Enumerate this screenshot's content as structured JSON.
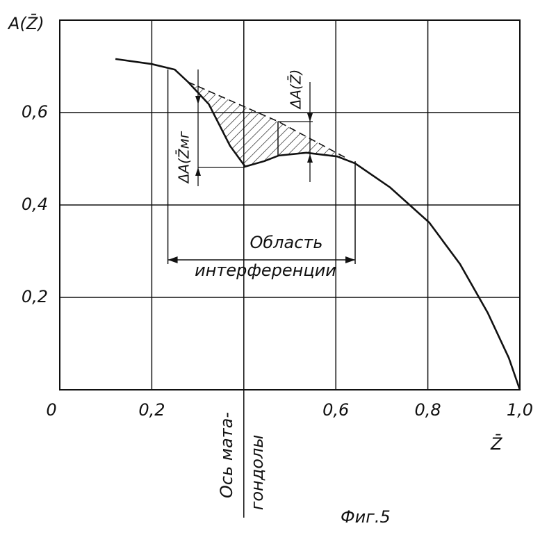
{
  "chart_data": {
    "type": "line",
    "caption": "Фиг.5",
    "y_label": "A(Z̄)",
    "x_label": "Z̄",
    "xlim": [
      0,
      1.0
    ],
    "ylim": [
      0,
      0.8
    ],
    "xticks": [
      0,
      {
        "value": 0.2,
        "label": "0,2"
      },
      {
        "value": 0.6,
        "label": "0,6"
      },
      {
        "value": 0.8,
        "label": "0,8"
      },
      {
        "value": 1.0,
        "label": "1,0"
      }
    ],
    "yticks": [
      {
        "value": 0.2,
        "label": "0,2"
      },
      {
        "value": 0.4,
        "label": "0,4"
      },
      {
        "value": 0.6,
        "label": "0,6"
      }
    ],
    "grid": true,
    "series": [
      {
        "color": "#111111",
        "dashed": false,
        "x": [
          0.121,
          0.2,
          0.25,
          0.279,
          0.324,
          0.37,
          0.403,
          0.445,
          0.476,
          0.536,
          0.603,
          0.642,
          0.718,
          0.803,
          0.87,
          0.93,
          0.976,
          1.0
        ],
        "values": [
          0.716,
          0.705,
          0.693,
          0.666,
          0.618,
          0.528,
          0.483,
          0.495,
          0.507,
          0.513,
          0.505,
          0.49,
          0.438,
          0.362,
          0.272,
          0.167,
          0.069,
          0
        ]
      },
      {
        "color": "#111111",
        "dashed": true,
        "x": [
          0.279,
          0.476,
          0.62
        ],
        "values": [
          0.666,
          0.58,
          0.503
        ]
      }
    ],
    "axis_annotation": {
      "x": 0.4,
      "lines": [
        "Ось мата-",
        "гондолы"
      ]
    },
    "interference_region": {
      "range": [
        0.235,
        0.642
      ],
      "lines": [
        "Область",
        "интерференции"
      ]
    },
    "delta_labels": [
      "ΔA(Z̄мг",
      "ΔA(Z̄)"
    ]
  }
}
